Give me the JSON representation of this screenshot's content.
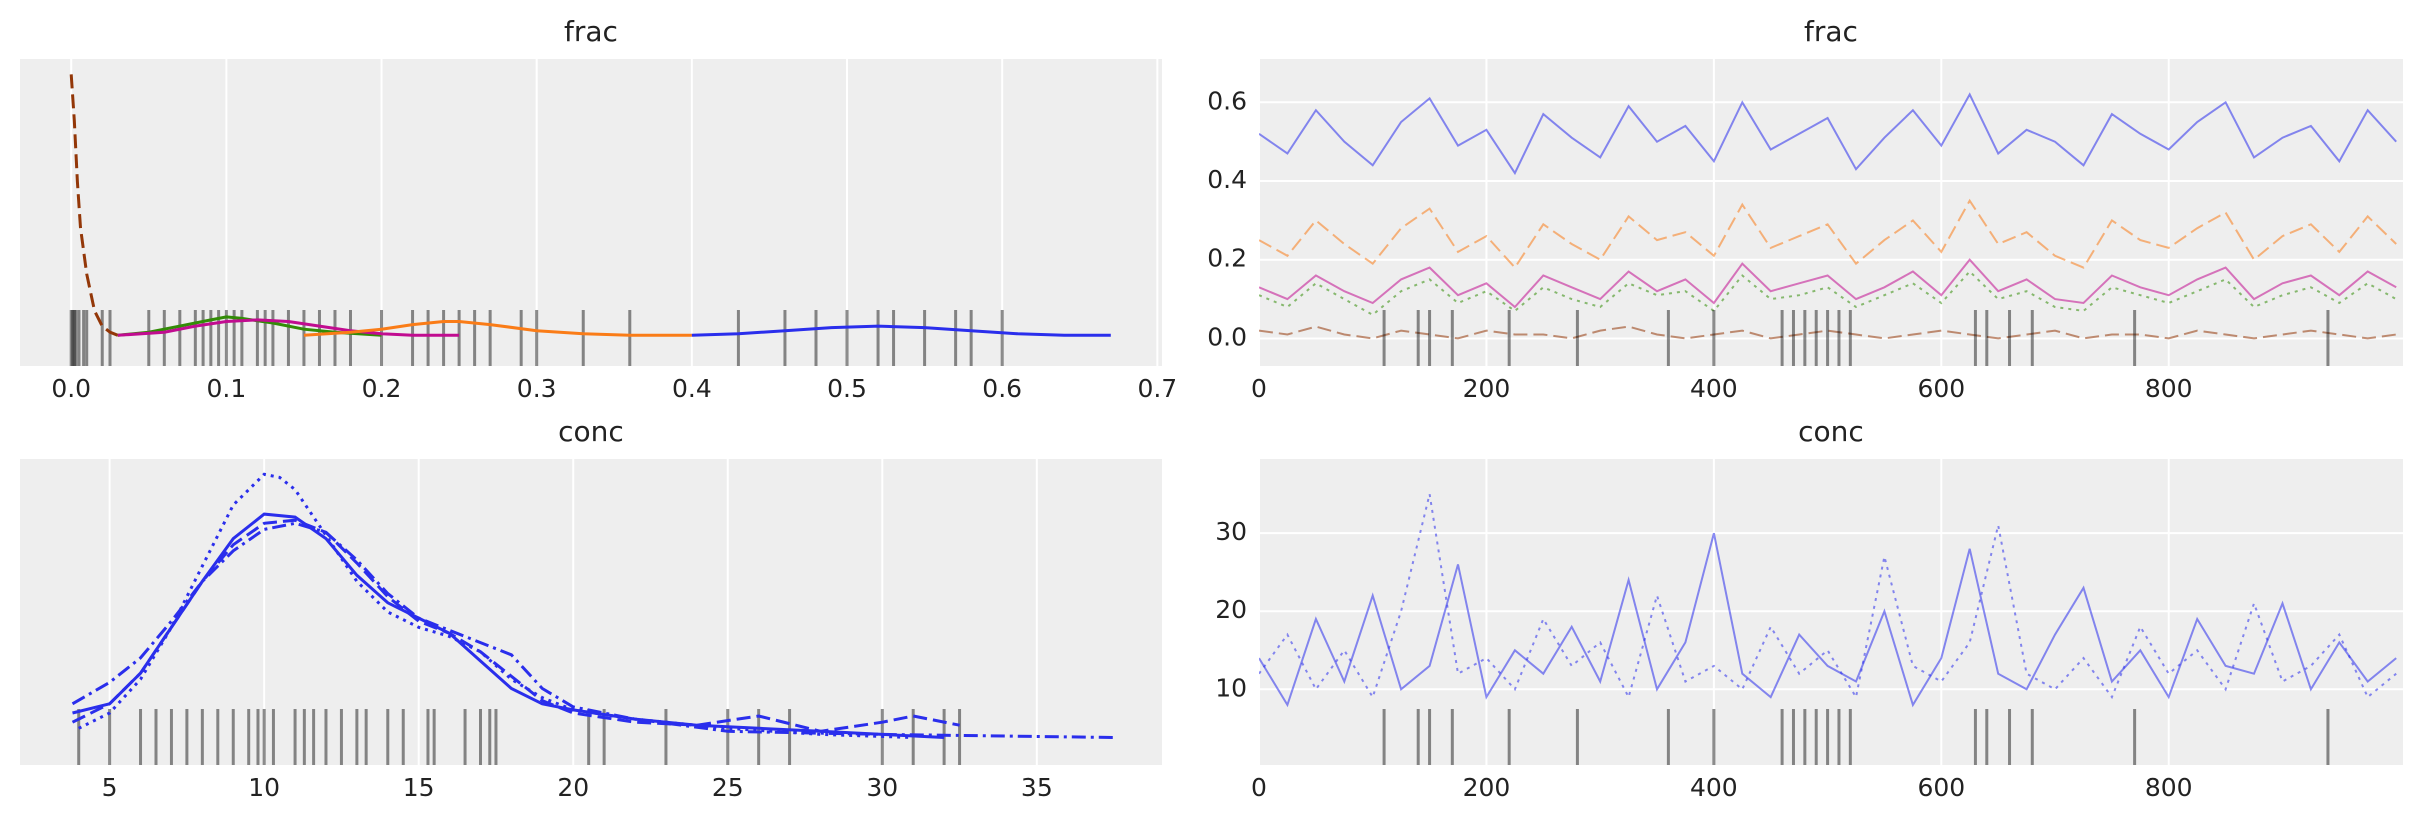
{
  "chart_data": [
    {
      "type": "kde",
      "title": "frac",
      "xlim": [
        -0.033,
        0.703
      ],
      "ylim": [
        0,
        1
      ],
      "xticks": [
        {
          "value": 0,
          "label": "0.0"
        },
        0.1,
        0.2,
        0.3,
        0.4,
        0.5,
        0.6,
        0.7
      ],
      "grid": "x",
      "series": [
        {
          "color": "#933708",
          "dash": "dashed",
          "x": [
            0,
            0.002,
            0.004,
            0.006,
            0.01,
            0.015,
            0.02,
            0.025,
            0.03
          ],
          "values": [
            0.95,
            0.8,
            0.6,
            0.45,
            0.3,
            0.18,
            0.13,
            0.11,
            0.1
          ]
        },
        {
          "color": "#328c06",
          "dash": "solid",
          "x": [
            0.03,
            0.05,
            0.07,
            0.09,
            0.1,
            0.11,
            0.13,
            0.15,
            0.17,
            0.2
          ],
          "values": [
            0.1,
            0.11,
            0.13,
            0.15,
            0.16,
            0.155,
            0.14,
            0.12,
            0.11,
            0.1
          ]
        },
        {
          "color": "#c10c90",
          "dash": "solid",
          "x": [
            0.03,
            0.06,
            0.08,
            0.1,
            0.12,
            0.14,
            0.16,
            0.18,
            0.2,
            0.22,
            0.25
          ],
          "values": [
            0.1,
            0.11,
            0.13,
            0.145,
            0.15,
            0.145,
            0.13,
            0.115,
            0.105,
            0.1,
            0.1
          ]
        },
        {
          "color": "#fa7c17",
          "dash": "solid",
          "x": [
            0.15,
            0.18,
            0.2,
            0.22,
            0.24,
            0.25,
            0.27,
            0.3,
            0.33,
            0.36,
            0.4
          ],
          "values": [
            0.1,
            0.11,
            0.12,
            0.135,
            0.145,
            0.145,
            0.135,
            0.115,
            0.105,
            0.1,
            0.1
          ]
        },
        {
          "color": "#2a2eec",
          "dash": "solid",
          "x": [
            0.4,
            0.43,
            0.46,
            0.49,
            0.52,
            0.55,
            0.58,
            0.61,
            0.64,
            0.67
          ],
          "values": [
            0.1,
            0.105,
            0.115,
            0.125,
            0.13,
            0.125,
            0.115,
            0.105,
            0.1,
            0.1
          ]
        }
      ],
      "rug": [
        0,
        0.001,
        0.002,
        0.003,
        0.005,
        0.008,
        0.01,
        0.02,
        0.025,
        0.05,
        0.06,
        0.07,
        0.08,
        0.085,
        0.09,
        0.095,
        0.1,
        0.105,
        0.11,
        0.12,
        0.125,
        0.13,
        0.14,
        0.15,
        0.16,
        0.17,
        0.18,
        0.2,
        0.22,
        0.23,
        0.24,
        0.25,
        0.26,
        0.27,
        0.29,
        0.3,
        0.33,
        0.36,
        0.43,
        0.46,
        0.48,
        0.5,
        0.52,
        0.53,
        0.55,
        0.57,
        0.58,
        0.6
      ]
    },
    {
      "type": "trace",
      "title": "frac",
      "xlim": [
        0,
        1006
      ],
      "ylim": [
        -0.07,
        0.71
      ],
      "xticks": [
        0,
        200,
        400,
        600,
        800
      ],
      "yticks": [
        {
          "value": 0,
          "label": "0.0"
        },
        0.2,
        0.4,
        0.6
      ],
      "grid": "both",
      "alpha": 0.55,
      "x": [
        0,
        25,
        50,
        75,
        100,
        125,
        150,
        175,
        200,
        225,
        250,
        275,
        300,
        325,
        350,
        375,
        400,
        425,
        450,
        475,
        500,
        525,
        550,
        575,
        600,
        625,
        650,
        675,
        700,
        725,
        750,
        775,
        800,
        825,
        850,
        875,
        900,
        925,
        950,
        975,
        1000
      ],
      "series": [
        {
          "color": "#2a2eec",
          "dash": "solid",
          "values": [
            0.52,
            0.47,
            0.58,
            0.5,
            0.44,
            0.55,
            0.61,
            0.49,
            0.53,
            0.42,
            0.57,
            0.51,
            0.46,
            0.59,
            0.5,
            0.54,
            0.45,
            0.6,
            0.48,
            0.52,
            0.56,
            0.43,
            0.51,
            0.58,
            0.49,
            0.62,
            0.47,
            0.53,
            0.5,
            0.44,
            0.57,
            0.52,
            0.48,
            0.55,
            0.6,
            0.46,
            0.51,
            0.54,
            0.45,
            0.58,
            0.5
          ]
        },
        {
          "color": "#fa7c17",
          "dash": "dashed",
          "values": [
            0.25,
            0.21,
            0.3,
            0.24,
            0.19,
            0.28,
            0.33,
            0.22,
            0.26,
            0.18,
            0.29,
            0.24,
            0.2,
            0.31,
            0.25,
            0.27,
            0.21,
            0.34,
            0.23,
            0.26,
            0.29,
            0.19,
            0.25,
            0.3,
            0.22,
            0.35,
            0.24,
            0.27,
            0.21,
            0.18,
            0.3,
            0.25,
            0.23,
            0.28,
            0.32,
            0.2,
            0.26,
            0.29,
            0.22,
            0.31,
            0.24
          ]
        },
        {
          "color": "#328c06",
          "dash": "dotted",
          "values": [
            0.11,
            0.08,
            0.14,
            0.1,
            0.06,
            0.12,
            0.15,
            0.09,
            0.12,
            0.07,
            0.13,
            0.1,
            0.08,
            0.14,
            0.11,
            0.12,
            0.07,
            0.16,
            0.1,
            0.11,
            0.13,
            0.08,
            0.11,
            0.14,
            0.09,
            0.17,
            0.1,
            0.12,
            0.08,
            0.07,
            0.13,
            0.11,
            0.09,
            0.12,
            0.15,
            0.08,
            0.11,
            0.13,
            0.09,
            0.14,
            0.1
          ]
        },
        {
          "color": "#c10c90",
          "dash": "solid",
          "values": [
            0.13,
            0.1,
            0.16,
            0.12,
            0.09,
            0.15,
            0.18,
            0.11,
            0.14,
            0.08,
            0.16,
            0.13,
            0.1,
            0.17,
            0.12,
            0.15,
            0.09,
            0.19,
            0.12,
            0.14,
            0.16,
            0.1,
            0.13,
            0.17,
            0.11,
            0.2,
            0.12,
            0.15,
            0.1,
            0.09,
            0.16,
            0.13,
            0.11,
            0.15,
            0.18,
            0.1,
            0.14,
            0.16,
            0.11,
            0.17,
            0.13
          ]
        },
        {
          "color": "#933708",
          "dash": "dashed",
          "values": [
            0.02,
            0.01,
            0.03,
            0.01,
            0,
            0.02,
            0.01,
            0,
            0.02,
            0.01,
            0.01,
            0,
            0.02,
            0.03,
            0.01,
            0,
            0.01,
            0.02,
            0,
            0.01,
            0.02,
            0.01,
            0,
            0.01,
            0.02,
            0.01,
            0,
            0.01,
            0.02,
            0,
            0.01,
            0.01,
            0,
            0.02,
            0.01,
            0,
            0.01,
            0.02,
            0.01,
            0,
            0.01
          ]
        }
      ],
      "rug": [
        110,
        140,
        150,
        170,
        220,
        280,
        360,
        400,
        460,
        470,
        480,
        490,
        500,
        510,
        520,
        630,
        640,
        660,
        680,
        770,
        940
      ]
    },
    {
      "type": "kde",
      "title": "conc",
      "xlim": [
        2.1,
        39.05
      ],
      "ylim": [
        0,
        1
      ],
      "xticks": [
        5,
        10,
        15,
        20,
        25,
        30,
        35
      ],
      "grid": "x",
      "series": [
        {
          "color": "#2a2eec",
          "dash": "solid",
          "x": [
            3.8,
            5,
            6,
            7,
            8,
            9,
            10,
            11,
            12,
            13,
            14,
            15,
            16,
            17,
            18,
            19,
            20,
            22,
            24,
            26,
            28,
            30,
            32
          ],
          "values": [
            0.17,
            0.2,
            0.3,
            0.45,
            0.6,
            0.74,
            0.82,
            0.81,
            0.74,
            0.62,
            0.53,
            0.48,
            0.43,
            0.34,
            0.25,
            0.2,
            0.18,
            0.15,
            0.13,
            0.12,
            0.11,
            0.1,
            0.09
          ]
        },
        {
          "color": "#2a2eec",
          "dash": "dotted",
          "x": [
            4,
            5,
            6,
            7,
            8,
            9,
            10,
            10.5,
            11,
            12,
            13,
            14,
            15,
            16,
            17,
            18,
            19,
            20,
            22,
            25,
            28,
            31
          ],
          "values": [
            0.12,
            0.17,
            0.28,
            0.45,
            0.65,
            0.85,
            0.95,
            0.94,
            0.9,
            0.75,
            0.6,
            0.5,
            0.45,
            0.42,
            0.37,
            0.28,
            0.22,
            0.18,
            0.15,
            0.12,
            0.1,
            0.09
          ]
        },
        {
          "color": "#2a2eec",
          "dash": "dashdot",
          "x": [
            3.8,
            5,
            6,
            7,
            8,
            9,
            10,
            11,
            12,
            13,
            14,
            15,
            16,
            17,
            18,
            19,
            20,
            22,
            25,
            30,
            37.5
          ],
          "values": [
            0.2,
            0.27,
            0.35,
            0.47,
            0.6,
            0.7,
            0.77,
            0.79,
            0.76,
            0.67,
            0.56,
            0.48,
            0.44,
            0.4,
            0.36,
            0.25,
            0.19,
            0.15,
            0.11,
            0.1,
            0.09
          ]
        },
        {
          "color": "#2a2eec",
          "dash": "dashed",
          "x": [
            3.8,
            5,
            6,
            7,
            8,
            9,
            10,
            11,
            12,
            13,
            14,
            15,
            16,
            17,
            18,
            19,
            20,
            22,
            24,
            26,
            28,
            30,
            31,
            32.5
          ],
          "values": [
            0.14,
            0.2,
            0.3,
            0.45,
            0.6,
            0.72,
            0.79,
            0.8,
            0.76,
            0.66,
            0.55,
            0.47,
            0.43,
            0.37,
            0.29,
            0.21,
            0.17,
            0.14,
            0.13,
            0.16,
            0.11,
            0.14,
            0.16,
            0.13
          ]
        }
      ],
      "rug": [
        4,
        5,
        6,
        6.5,
        7,
        7.5,
        8,
        8.5,
        9,
        9.5,
        9.8,
        10,
        10.3,
        11,
        11.3,
        11.6,
        12,
        12.5,
        13,
        13.3,
        14,
        14.5,
        15.3,
        15.5,
        16.5,
        17,
        17.3,
        17.5,
        20.5,
        21,
        23,
        25,
        26,
        27,
        30,
        31,
        32,
        32.5
      ]
    },
    {
      "type": "trace",
      "title": "conc",
      "xlim": [
        0,
        1006
      ],
      "ylim": [
        0.3,
        39.5
      ],
      "xticks": [
        0,
        200,
        400,
        600,
        800
      ],
      "yticks": [
        10,
        20,
        30
      ],
      "grid": "both",
      "alpha": 0.55,
      "x": [
        0,
        25,
        50,
        75,
        100,
        125,
        150,
        175,
        200,
        225,
        250,
        275,
        300,
        325,
        350,
        375,
        400,
        425,
        450,
        475,
        500,
        525,
        550,
        575,
        600,
        625,
        650,
        675,
        700,
        725,
        750,
        775,
        800,
        825,
        850,
        875,
        900,
        925,
        950,
        975,
        1000
      ],
      "series": [
        {
          "color": "#2a2eec",
          "dash": "solid",
          "values": [
            14,
            8,
            19,
            11,
            22,
            10,
            13,
            26,
            9,
            15,
            12,
            18,
            11,
            24,
            10,
            16,
            30,
            12,
            9,
            17,
            13,
            11,
            20,
            8,
            14,
            28,
            12,
            10,
            17,
            23,
            11,
            15,
            9,
            19,
            13,
            12,
            21,
            10,
            16,
            11,
            14
          ]
        },
        {
          "color": "#2a2eec",
          "dash": "dotted",
          "values": [
            12,
            17,
            10,
            15,
            9,
            20,
            35,
            12,
            14,
            10,
            19,
            13,
            16,
            9,
            22,
            11,
            13,
            10,
            18,
            12,
            15,
            9,
            27,
            13,
            11,
            16,
            31,
            12,
            10,
            14,
            9,
            18,
            12,
            15,
            10,
            21,
            11,
            13,
            17,
            9,
            12
          ]
        }
      ],
      "rug": [
        110,
        140,
        150,
        170,
        220,
        280,
        360,
        400,
        460,
        470,
        480,
        490,
        500,
        510,
        520,
        630,
        640,
        660,
        680,
        770,
        940
      ]
    }
  ]
}
